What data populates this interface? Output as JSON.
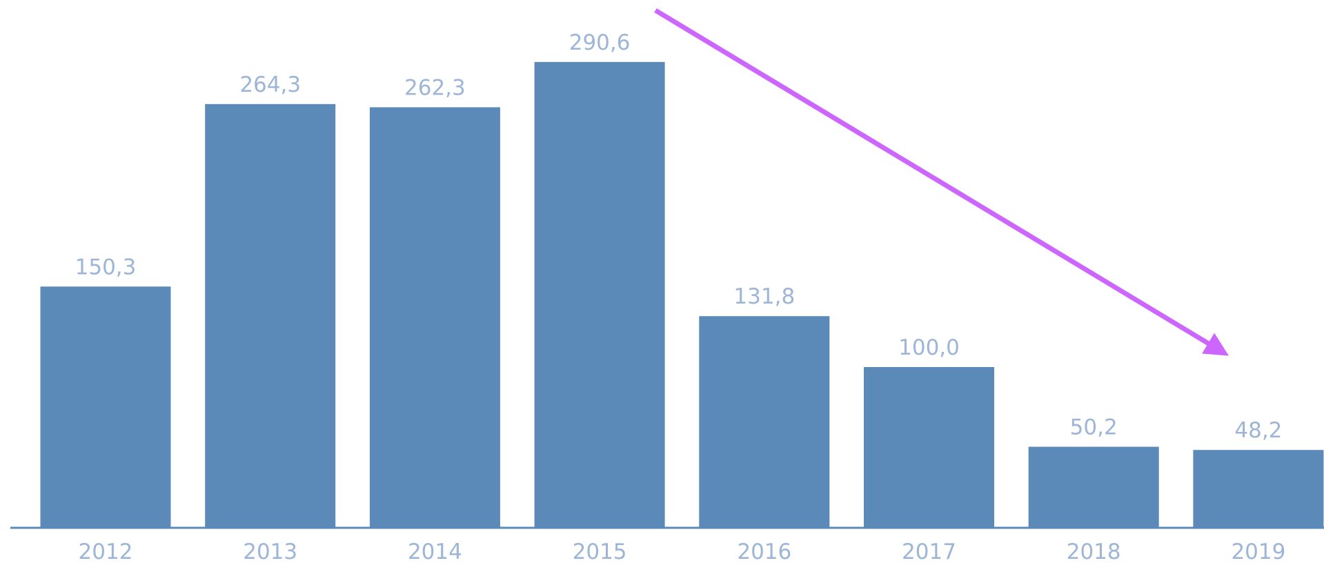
{
  "chart_data": {
    "type": "bar",
    "categories": [
      "2012",
      "2013",
      "2014",
      "2015",
      "2016",
      "2017",
      "2018",
      "2019"
    ],
    "values": [
      150.3,
      264.3,
      262.3,
      290.6,
      131.8,
      100.0,
      50.2,
      48.2
    ],
    "value_labels": [
      "150,3",
      "264,3",
      "262,3",
      "290,6",
      "131,8",
      "100,0",
      "50,2",
      "48,2"
    ],
    "color": "#5b8ab8",
    "ylim": [
      0,
      300
    ]
  }
}
